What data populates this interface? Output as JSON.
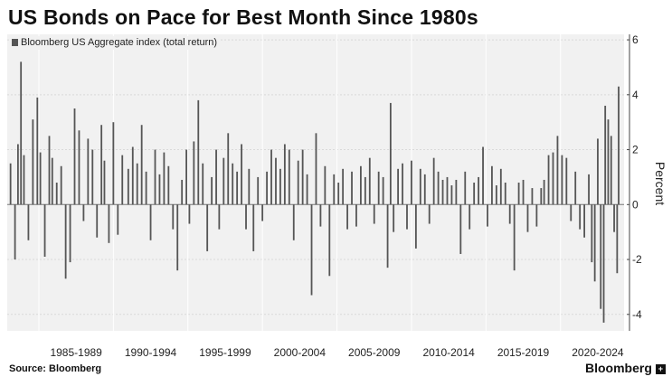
{
  "chart_data": {
    "type": "bar",
    "title": "US Bonds on Pace for Best Month Since 1980s",
    "legend": "Bloomberg US Aggregate index (total return)",
    "ylabel": "Percent",
    "ylim": [
      -4.6,
      6.2
    ],
    "yticks": [
      -4,
      -2,
      0,
      2,
      4,
      6
    ],
    "y_axis_position": "right",
    "grid": true,
    "legend_position": "top-left",
    "x_range": [
      1983.0,
      2023.9
    ],
    "x_period_labels": [
      "1985-1989",
      "1990-1994",
      "1995-1999",
      "2000-2004",
      "2005-2009",
      "2010-2014",
      "2015-2019",
      "2020-2024"
    ],
    "series": [
      {
        "color": "#555555",
        "points": [
          [
            1983.1,
            1.5
          ],
          [
            1983.4,
            -2.0
          ],
          [
            1983.6,
            2.2
          ],
          [
            1983.8,
            5.2
          ],
          [
            1984.0,
            1.8
          ],
          [
            1984.3,
            -1.3
          ],
          [
            1984.6,
            3.1
          ],
          [
            1984.9,
            3.9
          ],
          [
            1985.1,
            1.9
          ],
          [
            1985.4,
            -1.9
          ],
          [
            1985.7,
            2.5
          ],
          [
            1985.9,
            1.7
          ],
          [
            1986.2,
            0.8
          ],
          [
            1986.5,
            1.4
          ],
          [
            1986.8,
            -2.7
          ],
          [
            1987.1,
            -2.1
          ],
          [
            1987.4,
            3.5
          ],
          [
            1987.7,
            2.7
          ],
          [
            1988.0,
            -0.6
          ],
          [
            1988.3,
            2.4
          ],
          [
            1988.6,
            2.0
          ],
          [
            1988.9,
            -1.2
          ],
          [
            1989.2,
            2.9
          ],
          [
            1989.4,
            1.6
          ],
          [
            1989.7,
            -1.4
          ],
          [
            1990.0,
            3.0
          ],
          [
            1990.3,
            -1.1
          ],
          [
            1990.6,
            1.8
          ],
          [
            1991.0,
            1.3
          ],
          [
            1991.3,
            2.1
          ],
          [
            1991.6,
            1.5
          ],
          [
            1991.9,
            2.9
          ],
          [
            1992.2,
            1.2
          ],
          [
            1992.5,
            -1.3
          ],
          [
            1992.8,
            2.0
          ],
          [
            1993.1,
            1.1
          ],
          [
            1993.4,
            1.9
          ],
          [
            1993.7,
            1.4
          ],
          [
            1994.0,
            -0.9
          ],
          [
            1994.3,
            -2.4
          ],
          [
            1994.6,
            0.9
          ],
          [
            1994.9,
            2.0
          ],
          [
            1995.1,
            -0.7
          ],
          [
            1995.4,
            2.3
          ],
          [
            1995.7,
            3.8
          ],
          [
            1996.0,
            1.5
          ],
          [
            1996.3,
            -1.7
          ],
          [
            1996.6,
            1.0
          ],
          [
            1996.9,
            2.0
          ],
          [
            1997.1,
            -0.9
          ],
          [
            1997.4,
            1.7
          ],
          [
            1997.7,
            2.6
          ],
          [
            1998.0,
            1.5
          ],
          [
            1998.3,
            1.2
          ],
          [
            1998.6,
            2.2
          ],
          [
            1998.9,
            -0.9
          ],
          [
            1999.1,
            1.3
          ],
          [
            1999.4,
            -1.7
          ],
          [
            1999.7,
            1.0
          ],
          [
            2000.0,
            -0.6
          ],
          [
            2000.3,
            1.2
          ],
          [
            2000.6,
            2.0
          ],
          [
            2000.9,
            1.7
          ],
          [
            2001.2,
            1.3
          ],
          [
            2001.5,
            2.2
          ],
          [
            2001.8,
            2.0
          ],
          [
            2002.1,
            -1.3
          ],
          [
            2002.4,
            1.6
          ],
          [
            2002.7,
            2.0
          ],
          [
            2003.0,
            1.1
          ],
          [
            2003.3,
            -3.3
          ],
          [
            2003.6,
            2.6
          ],
          [
            2003.9,
            -0.8
          ],
          [
            2004.2,
            1.4
          ],
          [
            2004.5,
            -2.6
          ],
          [
            2004.8,
            1.1
          ],
          [
            2005.1,
            0.8
          ],
          [
            2005.4,
            1.3
          ],
          [
            2005.7,
            -0.9
          ],
          [
            2006.0,
            1.2
          ],
          [
            2006.3,
            -0.8
          ],
          [
            2006.6,
            1.4
          ],
          [
            2006.9,
            1.0
          ],
          [
            2007.2,
            1.7
          ],
          [
            2007.5,
            -0.7
          ],
          [
            2007.8,
            1.2
          ],
          [
            2008.1,
            1.0
          ],
          [
            2008.4,
            -2.3
          ],
          [
            2008.6,
            3.7
          ],
          [
            2008.8,
            -1.0
          ],
          [
            2009.1,
            1.3
          ],
          [
            2009.4,
            1.5
          ],
          [
            2009.7,
            -0.9
          ],
          [
            2010.0,
            1.6
          ],
          [
            2010.3,
            -1.6
          ],
          [
            2010.6,
            1.3
          ],
          [
            2010.9,
            1.1
          ],
          [
            2011.2,
            -0.7
          ],
          [
            2011.5,
            1.7
          ],
          [
            2011.8,
            1.2
          ],
          [
            2012.1,
            0.9
          ],
          [
            2012.4,
            1.0
          ],
          [
            2012.7,
            0.7
          ],
          [
            2013.0,
            0.9
          ],
          [
            2013.3,
            -1.8
          ],
          [
            2013.6,
            1.2
          ],
          [
            2013.9,
            -0.9
          ],
          [
            2014.2,
            0.8
          ],
          [
            2014.5,
            1.0
          ],
          [
            2014.8,
            2.1
          ],
          [
            2015.1,
            -0.8
          ],
          [
            2015.4,
            1.4
          ],
          [
            2015.7,
            0.7
          ],
          [
            2016.0,
            1.3
          ],
          [
            2016.3,
            0.8
          ],
          [
            2016.6,
            -0.7
          ],
          [
            2016.9,
            -2.4
          ],
          [
            2017.2,
            0.8
          ],
          [
            2017.5,
            0.9
          ],
          [
            2017.8,
            -1.0
          ],
          [
            2018.1,
            0.6
          ],
          [
            2018.4,
            -0.8
          ],
          [
            2018.7,
            0.6
          ],
          [
            2018.9,
            0.9
          ],
          [
            2019.2,
            1.8
          ],
          [
            2019.5,
            1.9
          ],
          [
            2019.8,
            2.5
          ],
          [
            2020.1,
            1.8
          ],
          [
            2020.4,
            1.7
          ],
          [
            2020.7,
            -0.6
          ],
          [
            2021.0,
            1.2
          ],
          [
            2021.3,
            -0.9
          ],
          [
            2021.6,
            -1.2
          ],
          [
            2021.9,
            1.1
          ],
          [
            2022.1,
            -2.1
          ],
          [
            2022.3,
            -2.8
          ],
          [
            2022.5,
            2.4
          ],
          [
            2022.7,
            -3.8
          ],
          [
            2022.9,
            -4.3
          ],
          [
            2023.0,
            3.6
          ],
          [
            2023.2,
            3.1
          ],
          [
            2023.4,
            2.5
          ],
          [
            2023.6,
            -1.0
          ],
          [
            2023.8,
            -2.5
          ],
          [
            2023.9,
            4.3
          ]
        ]
      }
    ]
  },
  "source": "Source: Bloomberg",
  "brand": "Bloomberg",
  "brand_icon": "plus-icon"
}
